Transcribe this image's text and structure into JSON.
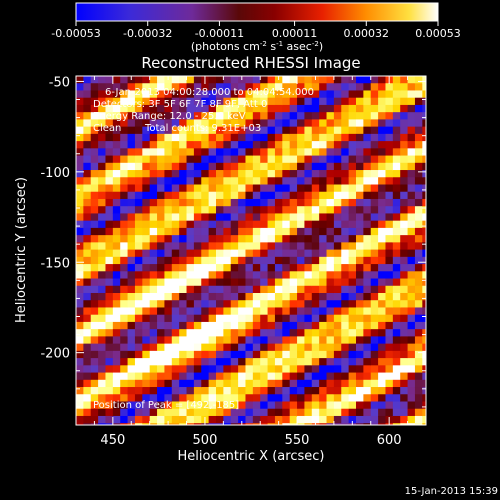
{
  "colorbar": {
    "ticks": [
      "-0.00053",
      "-0.00032",
      "-0.00011",
      "0.00011",
      "0.00032",
      "0.00053"
    ],
    "units_prefix": "(photons cm",
    "units_exp1": "-2",
    "units_mid": " s",
    "units_exp2": "-1",
    "units_mid2": " asec",
    "units_exp3": "-2",
    "units_suffix": ")"
  },
  "chart_data": {
    "type": "heatmap",
    "title": "Reconstructed RHESSI Image",
    "xlabel": "Heliocentric X (arcsec)",
    "ylabel": "Heliocentric Y (arcsec)",
    "xlim": [
      430,
      620
    ],
    "ylim": [
      -240,
      -47
    ],
    "xticks": [
      "450",
      "500",
      "550",
      "600"
    ],
    "yticks": [
      "-50",
      "-100",
      "-150",
      "-200"
    ],
    "xtick_values": [
      450,
      500,
      550,
      600
    ],
    "ytick_values": [
      -50,
      -100,
      -150,
      -200
    ],
    "pixel_size_arcsec": 4,
    "colormap": [
      "#0000ff",
      "#5a3cc8",
      "#7a2a8a",
      "#5a0000",
      "#b00000",
      "#ff3000",
      "#ff8c00",
      "#ffd700",
      "#ffff80",
      "#ffffff"
    ],
    "value_range": [
      -0.00053,
      0.00053
    ],
    "pattern": "diagonal stripes, brightest near [492,-185]",
    "peak": [
      492,
      -185
    ]
  },
  "annotations": {
    "time": "6-Jan-2013 04:00:28.000 to 04:04:54.000",
    "detectors": "Detectors: 3F 5F 6F 7F 8F 9F, Att 0",
    "energy": "Energy Range: 12.0 - 25.0 keV",
    "clean_label": "Clean",
    "counts": "Total counts: 9.31E+03",
    "peak_label": "Position of Peak = [492,-185]"
  },
  "footer_date": "15-Jan-2013 15:39"
}
